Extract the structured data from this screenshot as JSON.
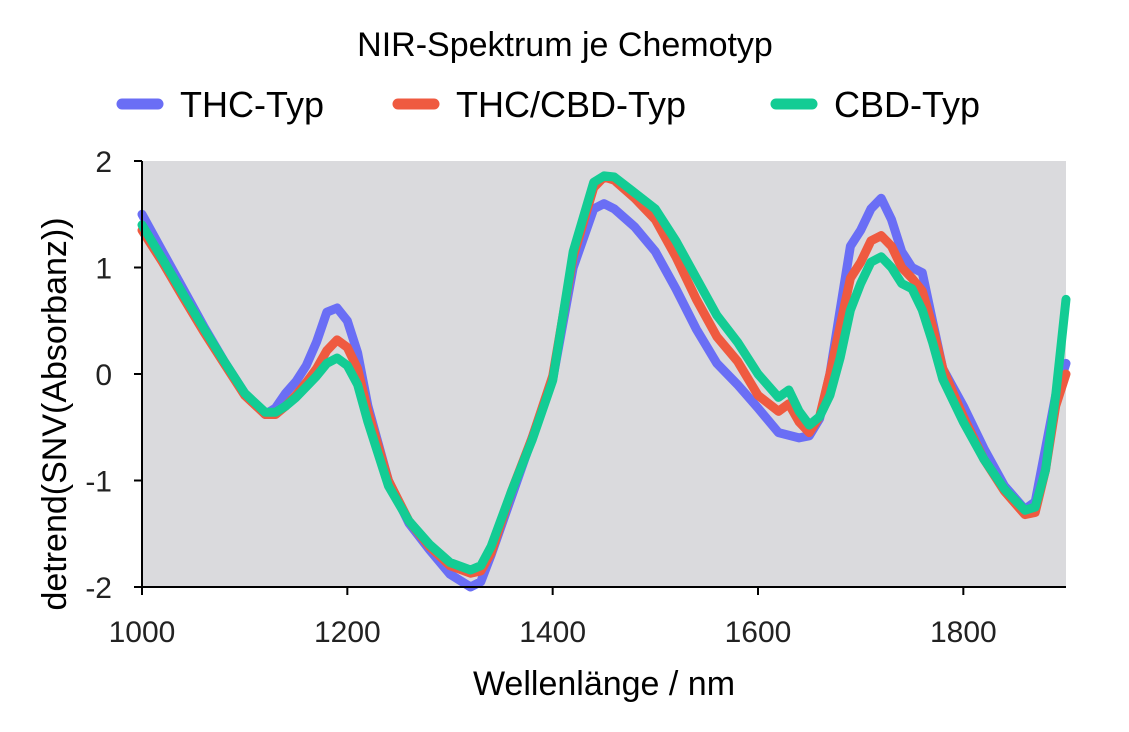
{
  "chart_data": {
    "type": "line",
    "title": "NIR-Spektrum je Chemotyp",
    "xlabel": "Wellenlänge / nm",
    "ylabel": "detrend(SNV(Absorbanz))",
    "xlim": [
      1000,
      1900
    ],
    "ylim": [
      -2,
      2
    ],
    "xticks": [
      1000,
      1200,
      1400,
      1600,
      1800
    ],
    "yticks": [
      2,
      1,
      0,
      -1,
      -2
    ],
    "grid": false,
    "legend_position": "top",
    "plot_background": "#dadadd",
    "series": [
      {
        "name": "THC-Typ",
        "color": "#6a6ef5",
        "x": [
          1000,
          1020,
          1040,
          1060,
          1080,
          1100,
          1120,
          1130,
          1140,
          1150,
          1160,
          1170,
          1180,
          1190,
          1200,
          1210,
          1220,
          1240,
          1260,
          1280,
          1300,
          1320,
          1330,
          1340,
          1360,
          1380,
          1400,
          1420,
          1440,
          1450,
          1460,
          1480,
          1500,
          1520,
          1540,
          1560,
          1580,
          1600,
          1620,
          1640,
          1650,
          1660,
          1670,
          1680,
          1690,
          1700,
          1710,
          1720,
          1730,
          1740,
          1750,
          1760,
          1770,
          1780,
          1800,
          1820,
          1840,
          1860,
          1870,
          1880,
          1890,
          1900
        ],
        "y": [
          1.5,
          1.15,
          0.8,
          0.45,
          0.12,
          -0.18,
          -0.38,
          -0.32,
          -0.18,
          -0.07,
          0.08,
          0.3,
          0.58,
          0.62,
          0.5,
          0.2,
          -0.3,
          -1.0,
          -1.4,
          -1.65,
          -1.88,
          -2.0,
          -1.95,
          -1.7,
          -1.15,
          -0.6,
          -0.05,
          1.0,
          1.55,
          1.6,
          1.55,
          1.38,
          1.15,
          0.8,
          0.42,
          0.1,
          -0.1,
          -0.32,
          -0.55,
          -0.6,
          -0.58,
          -0.42,
          0.0,
          0.6,
          1.2,
          1.35,
          1.55,
          1.65,
          1.45,
          1.15,
          1.0,
          0.95,
          0.5,
          0.05,
          -0.3,
          -0.7,
          -1.05,
          -1.27,
          -1.2,
          -0.7,
          -0.2,
          0.1
        ]
      },
      {
        "name": "THC/CBD-Typ",
        "color": "#ef5a40",
        "x": [
          1000,
          1020,
          1040,
          1060,
          1080,
          1100,
          1120,
          1130,
          1140,
          1150,
          1160,
          1170,
          1180,
          1190,
          1200,
          1210,
          1220,
          1240,
          1260,
          1280,
          1300,
          1320,
          1330,
          1340,
          1360,
          1380,
          1400,
          1420,
          1440,
          1450,
          1460,
          1480,
          1500,
          1520,
          1540,
          1560,
          1580,
          1600,
          1620,
          1630,
          1640,
          1650,
          1660,
          1670,
          1680,
          1690,
          1700,
          1710,
          1720,
          1730,
          1740,
          1750,
          1760,
          1770,
          1780,
          1800,
          1820,
          1840,
          1860,
          1870,
          1880,
          1890,
          1900
        ],
        "y": [
          1.35,
          1.05,
          0.72,
          0.4,
          0.1,
          -0.2,
          -0.38,
          -0.38,
          -0.3,
          -0.2,
          -0.08,
          0.05,
          0.22,
          0.32,
          0.25,
          0.05,
          -0.35,
          -1.0,
          -1.38,
          -1.62,
          -1.8,
          -1.87,
          -1.85,
          -1.68,
          -1.1,
          -0.6,
          -0.02,
          1.1,
          1.75,
          1.85,
          1.82,
          1.65,
          1.45,
          1.1,
          0.7,
          0.35,
          0.12,
          -0.2,
          -0.35,
          -0.28,
          -0.45,
          -0.55,
          -0.4,
          0.0,
          0.45,
          0.9,
          1.05,
          1.25,
          1.3,
          1.2,
          1.0,
          0.9,
          0.78,
          0.45,
          0.05,
          -0.4,
          -0.8,
          -1.1,
          -1.32,
          -1.3,
          -0.9,
          -0.3,
          0.0
        ]
      },
      {
        "name": "CBD-Typ",
        "color": "#13cc94",
        "x": [
          1000,
          1020,
          1040,
          1060,
          1080,
          1100,
          1120,
          1130,
          1140,
          1150,
          1160,
          1170,
          1180,
          1190,
          1200,
          1210,
          1220,
          1240,
          1260,
          1280,
          1300,
          1320,
          1330,
          1340,
          1360,
          1380,
          1400,
          1420,
          1440,
          1450,
          1460,
          1480,
          1500,
          1520,
          1540,
          1560,
          1580,
          1600,
          1620,
          1630,
          1640,
          1650,
          1660,
          1670,
          1680,
          1690,
          1700,
          1710,
          1720,
          1730,
          1740,
          1750,
          1760,
          1770,
          1780,
          1800,
          1820,
          1840,
          1860,
          1870,
          1880,
          1890,
          1900
        ],
        "y": [
          1.4,
          1.08,
          0.75,
          0.43,
          0.12,
          -0.18,
          -0.36,
          -0.36,
          -0.3,
          -0.22,
          -0.12,
          -0.02,
          0.1,
          0.15,
          0.08,
          -0.1,
          -0.45,
          -1.05,
          -1.38,
          -1.6,
          -1.77,
          -1.84,
          -1.8,
          -1.62,
          -1.1,
          -0.62,
          -0.06,
          1.15,
          1.8,
          1.86,
          1.85,
          1.7,
          1.55,
          1.25,
          0.9,
          0.55,
          0.3,
          0.0,
          -0.22,
          -0.15,
          -0.35,
          -0.48,
          -0.4,
          -0.2,
          0.15,
          0.6,
          0.85,
          1.05,
          1.1,
          1.0,
          0.85,
          0.8,
          0.6,
          0.3,
          -0.05,
          -0.45,
          -0.8,
          -1.08,
          -1.28,
          -1.25,
          -0.9,
          -0.2,
          0.7
        ]
      }
    ]
  }
}
